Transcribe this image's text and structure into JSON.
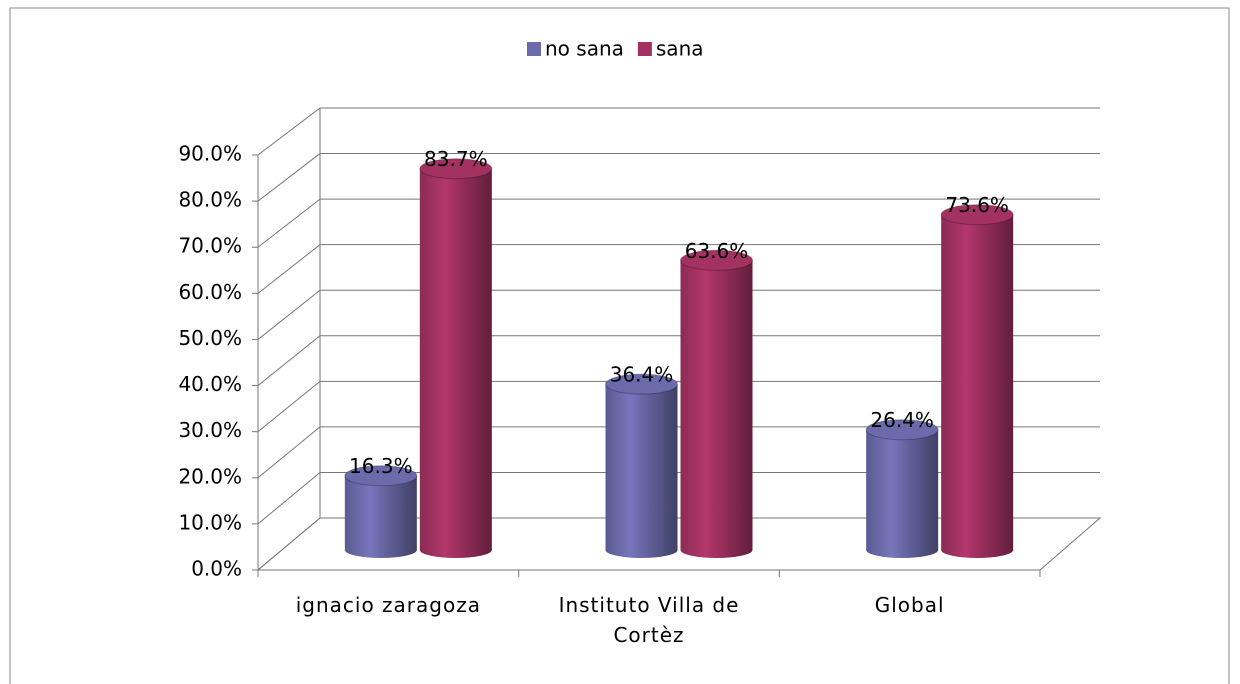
{
  "chart_data": {
    "type": "bar3d",
    "categories": [
      "ignacio zaragoza",
      "Instituto Villa de Cortèz",
      "Global"
    ],
    "series": [
      {
        "name": "no sana",
        "color": "#6b6bab",
        "values": [
          16.3,
          36.4,
          26.4
        ],
        "value_labels": [
          "16.3%",
          "36.4%",
          "26.4%"
        ]
      },
      {
        "name": "sana",
        "color": "#a33263",
        "values": [
          83.7,
          63.6,
          73.6
        ],
        "value_labels": [
          "83.7%",
          "63.6%",
          "73.6%"
        ]
      }
    ],
    "ylim": [
      0,
      90
    ],
    "yticks": [
      {
        "value": 0,
        "label": "0.0%"
      },
      {
        "value": 10,
        "label": "10.0%"
      },
      {
        "value": 20,
        "label": "20.0%"
      },
      {
        "value": 30,
        "label": "30.0%"
      },
      {
        "value": 40,
        "label": "40.0%"
      },
      {
        "value": 50,
        "label": "50.0%"
      },
      {
        "value": 60,
        "label": "60.0%"
      },
      {
        "value": 70,
        "label": "70.0%"
      },
      {
        "value": 80,
        "label": "80.0%"
      },
      {
        "value": 90,
        "label": "90.0%"
      }
    ],
    "grid": true,
    "legend": "top"
  }
}
